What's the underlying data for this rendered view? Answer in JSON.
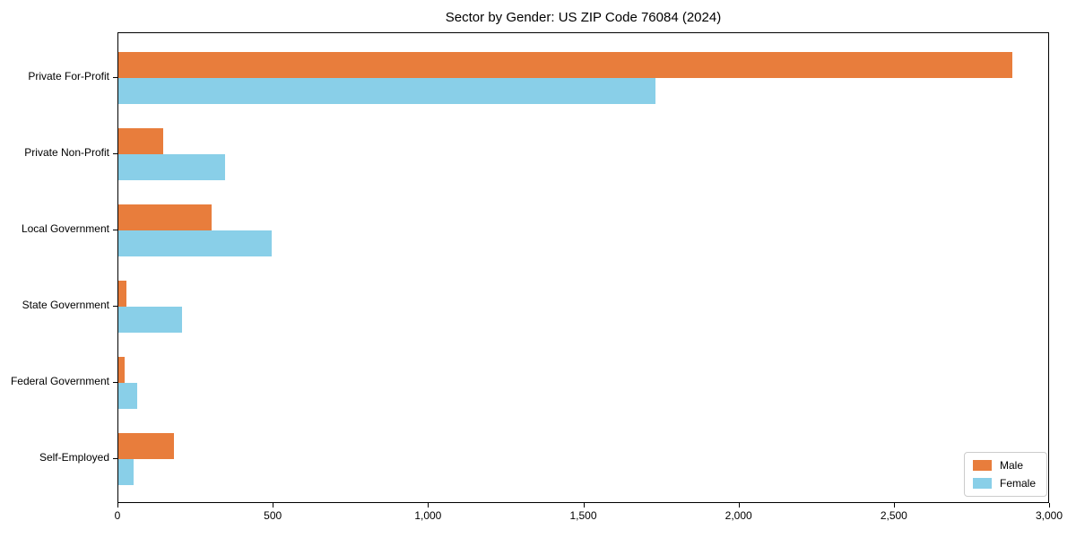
{
  "title": "Sector by Gender: US ZIP Code 76084 (2024)",
  "chart_data": {
    "type": "bar",
    "orientation": "horizontal",
    "title": "Sector by Gender: US ZIP Code 76084 (2024)",
    "categories": [
      "Private For-Profit",
      "Private Non-Profit",
      "Local Government",
      "State Government",
      "Federal Government",
      "Self-Employed"
    ],
    "series": [
      {
        "name": "Male",
        "color": "#e87d3c",
        "values": [
          2880,
          145,
          300,
          25,
          20,
          180
        ]
      },
      {
        "name": "Female",
        "color": "#89cfe8",
        "values": [
          1730,
          345,
          495,
          205,
          60,
          50
        ]
      }
    ],
    "xlabel": "",
    "ylabel": "",
    "xlim": [
      0,
      3000
    ],
    "xticks": [
      0,
      500,
      1000,
      1500,
      2000,
      2500,
      3000
    ],
    "xtick_labels": [
      "0",
      "500",
      "1,000",
      "1,500",
      "2,000",
      "2,500",
      "3,000"
    ],
    "legend_position": "lower right",
    "grid": false
  }
}
